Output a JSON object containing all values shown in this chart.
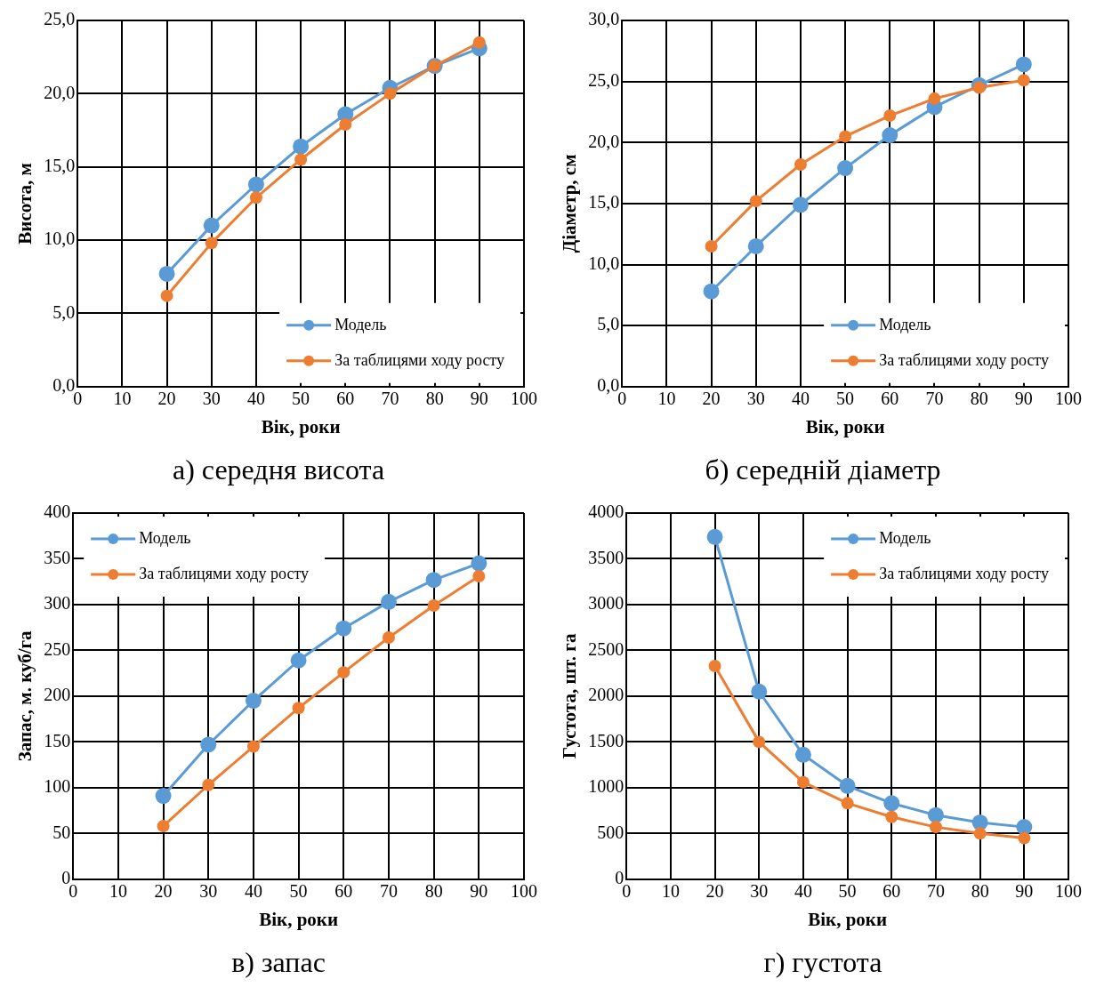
{
  "chart_data": [
    {
      "type": "line",
      "x": [
        20,
        30,
        40,
        50,
        60,
        70,
        80,
        90
      ],
      "xlabel": "Вік, роки",
      "ylabel": "Висота, м",
      "xlim": [
        0,
        100
      ],
      "xticks": [
        0,
        10,
        20,
        30,
        40,
        50,
        60,
        70,
        80,
        90,
        100
      ],
      "ylim": [
        0,
        25
      ],
      "yticks": [
        {
          "value": 0,
          "label": "0,0"
        },
        {
          "value": 5,
          "label": "5,0"
        },
        {
          "value": 10,
          "label": "10,0"
        },
        {
          "value": 15,
          "label": "15,0"
        },
        {
          "value": 20,
          "label": "20,0"
        },
        {
          "value": 25,
          "label": "25,0"
        }
      ],
      "grid": true,
      "legend": "bottom right",
      "marker": "circle",
      "line_style": "solid",
      "annotations": [
        "а) середня висота"
      ],
      "series": [
        {
          "name": "Модель",
          "color": "#5b9bd5",
          "values": [
            7.7,
            11.0,
            13.8,
            16.4,
            18.6,
            20.4,
            21.9,
            23.1
          ]
        },
        {
          "name": "За таблицями ходу росту",
          "color": "#ed7d31",
          "values": [
            6.2,
            9.8,
            12.9,
            15.5,
            17.9,
            20.0,
            21.9,
            23.5
          ]
        }
      ]
    },
    {
      "type": "line",
      "x": [
        20,
        30,
        40,
        50,
        60,
        70,
        80,
        90
      ],
      "xlabel": "Вік, роки",
      "ylabel": "Діаметр, см",
      "xlim": [
        0,
        100
      ],
      "xticks": [
        0,
        10,
        20,
        30,
        40,
        50,
        60,
        70,
        80,
        90,
        100
      ],
      "ylim": [
        0,
        30
      ],
      "yticks": [
        {
          "value": 0,
          "label": "0,0"
        },
        {
          "value": 5,
          "label": "5,0"
        },
        {
          "value": 10,
          "label": "10,0"
        },
        {
          "value": 15,
          "label": "15,0"
        },
        {
          "value": 20,
          "label": "20,0"
        },
        {
          "value": 25,
          "label": "25,0"
        },
        {
          "value": 30,
          "label": "30,0"
        }
      ],
      "grid": true,
      "legend": "bottom right",
      "marker": "circle",
      "line_style": "solid",
      "annotations": [
        "б) середній діаметр"
      ],
      "series": [
        {
          "name": "Модель",
          "color": "#5b9bd5",
          "values": [
            7.8,
            11.5,
            14.9,
            17.9,
            20.6,
            22.9,
            24.7,
            26.4
          ]
        },
        {
          "name": "За таблицями ходу росту",
          "color": "#ed7d31",
          "values": [
            11.5,
            15.2,
            18.2,
            20.5,
            22.2,
            23.6,
            24.5,
            25.1
          ]
        }
      ]
    },
    {
      "type": "line",
      "x": [
        20,
        30,
        40,
        50,
        60,
        70,
        80,
        90
      ],
      "xlabel": "Вік, роки",
      "ylabel": "Запас, м. куб/га",
      "xlim": [
        0,
        100
      ],
      "xticks": [
        0,
        10,
        20,
        30,
        40,
        50,
        60,
        70,
        80,
        90,
        100
      ],
      "ylim": [
        0,
        400
      ],
      "yticks": [
        0,
        50,
        100,
        150,
        200,
        250,
        300,
        350,
        400
      ],
      "grid": true,
      "legend": "top left",
      "marker": "circle",
      "line_style": "solid",
      "annotations": [
        "в) запас"
      ],
      "series": [
        {
          "name": "Модель",
          "color": "#5b9bd5",
          "values": [
            91,
            147,
            195,
            239,
            274,
            303,
            327,
            345
          ]
        },
        {
          "name": "За таблицями ходу росту",
          "color": "#ed7d31",
          "values": [
            58,
            103,
            145,
            187,
            226,
            264,
            299,
            331
          ]
        }
      ]
    },
    {
      "type": "line",
      "x": [
        20,
        30,
        40,
        50,
        60,
        70,
        80,
        90
      ],
      "xlabel": "Вік, роки",
      "ylabel": "Густота, шт. га",
      "xlim": [
        0,
        100
      ],
      "xticks": [
        0,
        10,
        20,
        30,
        40,
        50,
        60,
        70,
        80,
        90,
        100
      ],
      "ylim": [
        0,
        4000
      ],
      "yticks": [
        0,
        500,
        1000,
        1500,
        2000,
        2500,
        3000,
        3500,
        4000
      ],
      "grid": true,
      "legend": "top right",
      "marker": "circle",
      "line_style": "solid",
      "annotations": [
        "г) густота"
      ],
      "series": [
        {
          "name": "Модель",
          "color": "#5b9bd5",
          "values": [
            3740,
            2050,
            1360,
            1020,
            830,
            700,
            620,
            570
          ]
        },
        {
          "name": "За таблицями ходу росту",
          "color": "#ed7d31",
          "values": [
            2330,
            1500,
            1060,
            830,
            680,
            570,
            500,
            450
          ]
        }
      ]
    }
  ]
}
